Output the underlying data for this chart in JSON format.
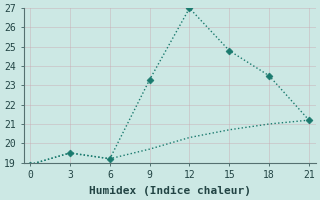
{
  "xlabel": "Humidex (Indice chaleur)",
  "background_color": "#cce8e4",
  "grid_color": "#b8d8d4",
  "line_color": "#1a7a6e",
  "line1_x": [
    0,
    3,
    6,
    9,
    12,
    15,
    18,
    21
  ],
  "line1_y": [
    18.9,
    19.5,
    19.2,
    23.3,
    27.0,
    24.8,
    23.5,
    21.2
  ],
  "line2_x": [
    0,
    3,
    6,
    9,
    12,
    15,
    18,
    21
  ],
  "line2_y": [
    18.9,
    19.5,
    19.2,
    19.7,
    20.3,
    20.7,
    21.0,
    21.2
  ],
  "xlim": [
    -0.5,
    21.5
  ],
  "ylim": [
    19,
    27
  ],
  "xticks": [
    0,
    3,
    6,
    9,
    12,
    15,
    18,
    21
  ],
  "yticks": [
    19,
    20,
    21,
    22,
    23,
    24,
    25,
    26,
    27
  ],
  "markersize": 3.5,
  "linewidth": 1.0,
  "xlabel_fontsize": 8,
  "tick_fontsize": 7
}
